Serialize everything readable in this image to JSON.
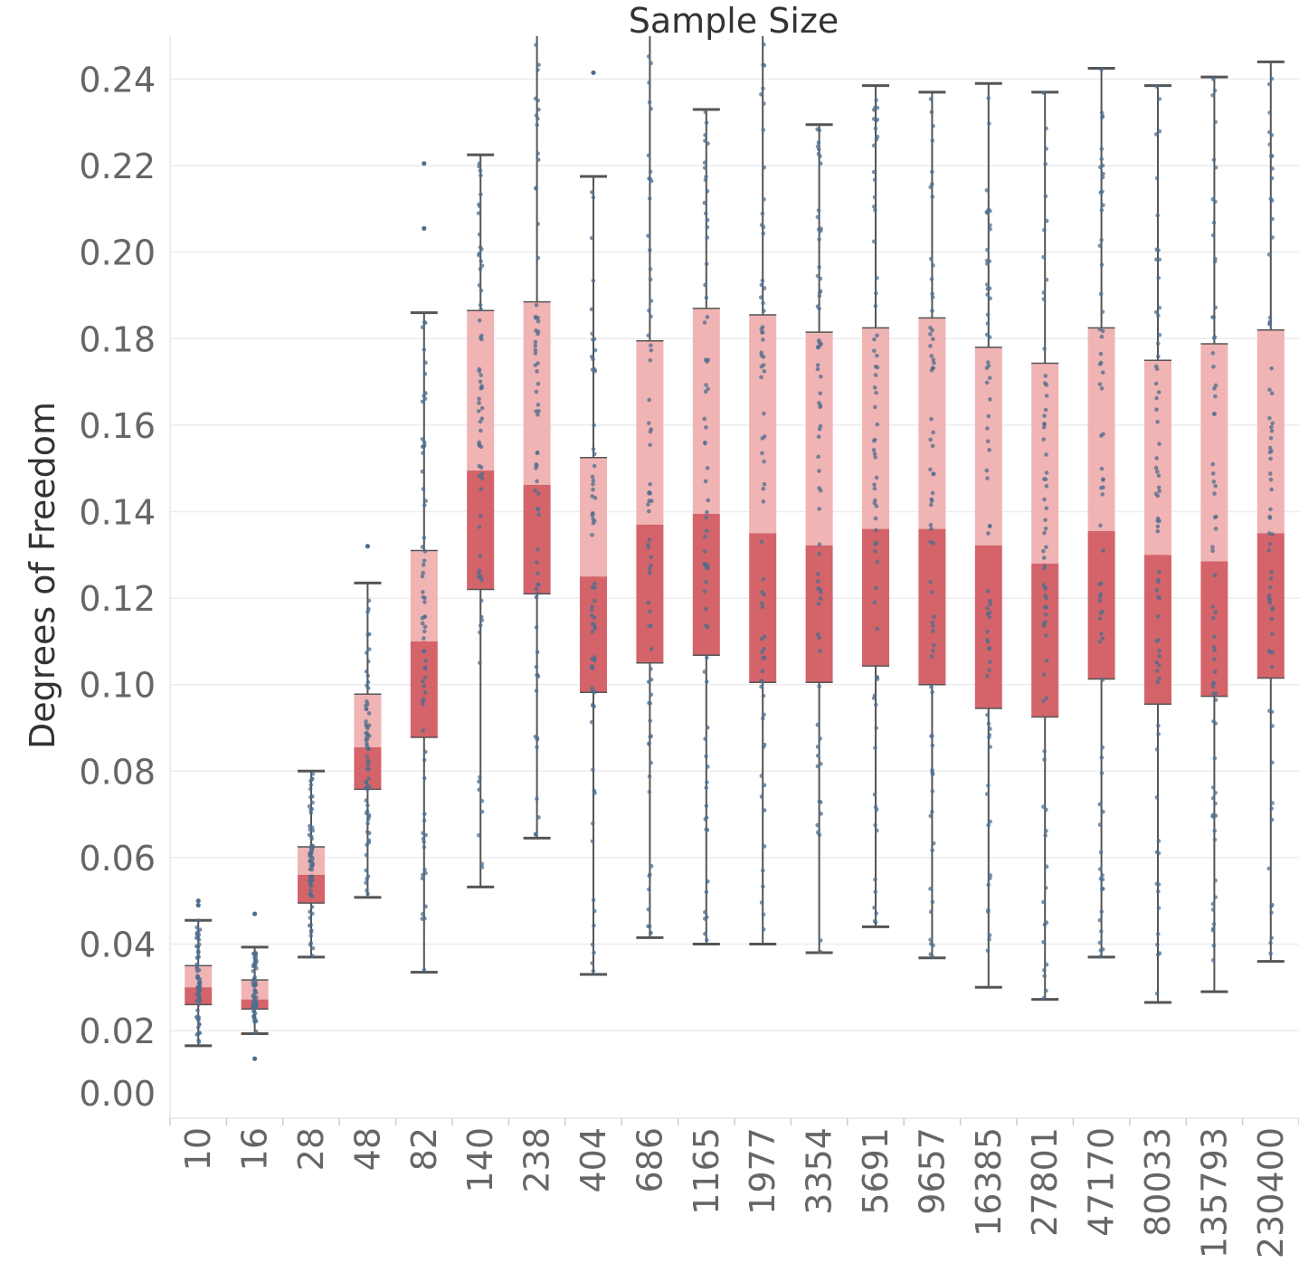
{
  "chart_data": {
    "type": "boxplot",
    "title": "Sample Size",
    "xlabel": "",
    "ylabel": "Degrees of Freedom",
    "ylim": [
      0.0,
      0.25
    ],
    "yticks": [
      "0.00",
      "0.02",
      "0.04",
      "0.06",
      "0.08",
      "0.10",
      "0.12",
      "0.14",
      "0.16",
      "0.18",
      "0.20",
      "0.22",
      "0.24"
    ],
    "categories": [
      "10",
      "16",
      "28",
      "48",
      "82",
      "140",
      "238",
      "404",
      "686",
      "1165",
      "1977",
      "3354",
      "5691",
      "9657",
      "16385",
      "27801",
      "47170",
      "80033",
      "135793",
      "230400"
    ],
    "whisker_low": [
      0.0165,
      0.0193,
      0.037,
      0.0508,
      0.0335,
      0.0532,
      0.0645,
      0.033,
      0.0415,
      0.04,
      0.04,
      0.038,
      0.044,
      0.0368,
      0.03,
      0.0272,
      0.037,
      0.0265,
      0.029,
      0.036
    ],
    "q1": [
      0.026,
      0.025,
      0.0495,
      0.0758,
      0.0878,
      0.122,
      0.121,
      0.0982,
      0.105,
      0.1068,
      0.1005,
      0.1005,
      0.1043,
      0.1,
      0.0945,
      0.0925,
      0.1013,
      0.0955,
      0.0973,
      0.1015
    ],
    "median": [
      0.03,
      0.0272,
      0.056,
      0.0855,
      0.11,
      0.1495,
      0.1462,
      0.125,
      0.137,
      0.1395,
      0.135,
      0.1322,
      0.136,
      0.136,
      0.1322,
      0.128,
      0.1355,
      0.13,
      0.1285,
      0.135
    ],
    "q3": [
      0.035,
      0.0317,
      0.0625,
      0.0978,
      0.131,
      0.1865,
      0.1885,
      0.1525,
      0.1795,
      0.187,
      0.1855,
      0.1815,
      0.1825,
      0.1848,
      0.178,
      0.1743,
      0.1825,
      0.175,
      0.1788,
      0.182
    ],
    "whisker_high": [
      0.0455,
      0.0393,
      0.08,
      0.1235,
      0.186,
      0.2225,
      0.25,
      0.2175,
      0.25,
      0.233,
      0.25,
      0.2295,
      0.2385,
      0.237,
      0.239,
      0.237,
      0.2425,
      0.2385,
      0.2405,
      0.244
    ],
    "outliers": [
      [
        0.05,
        0.049
      ],
      [
        0.047,
        0.0135
      ],
      [],
      [
        0.132
      ],
      [
        0.2205,
        0.2055
      ],
      [],
      [],
      [
        0.2415
      ],
      [],
      [],
      [],
      [],
      [],
      [],
      [],
      [],
      [],
      [],
      [],
      []
    ],
    "colors": {
      "upper_box": "#f0b4b4",
      "lower_box": "#d4646a",
      "points": "#4e6e8e",
      "whisker": "#555555"
    }
  }
}
